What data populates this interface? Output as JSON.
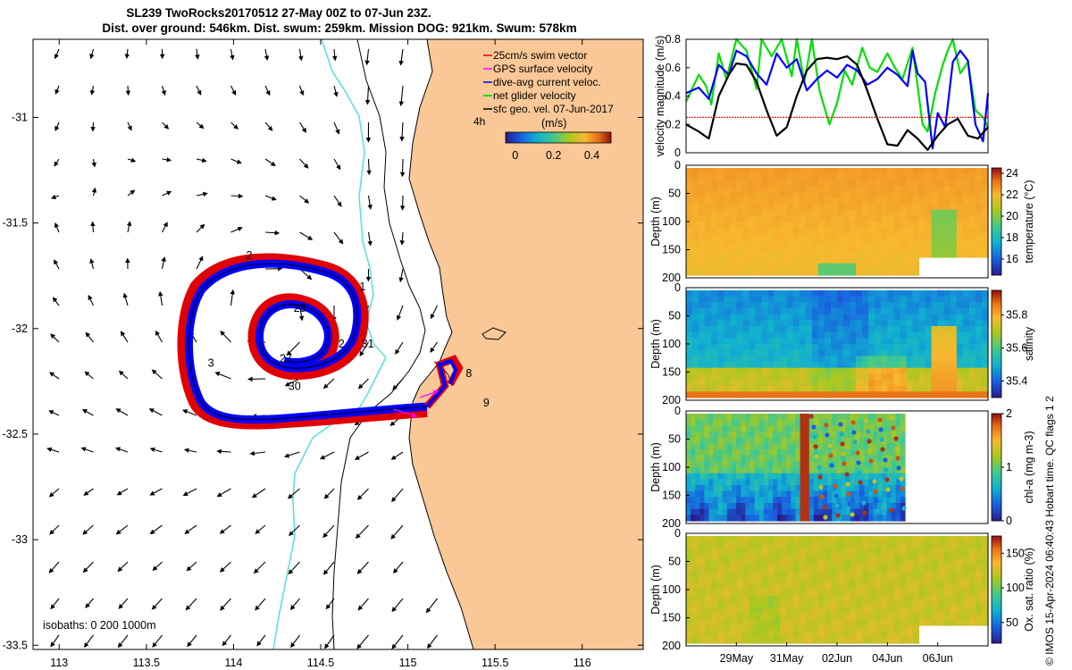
{
  "title_line1": "SL239 TwoRocks20170512 27-May 00Z to 07-Jun 23Z.",
  "title_line2": "Dist. over ground: 546km. Dist. swum: 259km. Mission DOG: 921km. Swum: 578km",
  "credit": "© IMOS 15-Apr-2024 06:40:43 Hobart time. QC flags 1  2",
  "colors": {
    "land": "#f9c896",
    "sea": "#ffffff",
    "isobath200": "#000000",
    "isobath1000": "#55e0e0",
    "swim": "#e00000",
    "dive_avg": "#0000ff",
    "net": "#00e000",
    "sfc_geo": "#000000",
    "gps": "#ff00ff"
  },
  "chart_data": [
    {
      "type": "map",
      "xlim": [
        112.85,
        116.35
      ],
      "ylim": [
        -33.52,
        -30.63
      ],
      "xticks": [
        "113",
        "113.5",
        "114",
        "114.5",
        "115",
        "115.5",
        "116"
      ],
      "xtick_values": [
        113,
        113.5,
        114,
        114.5,
        115,
        115.5,
        116
      ],
      "yticks": [
        "-31",
        "-31.5",
        "-32",
        "-32.5",
        "-33",
        "-33.5"
      ],
      "ytick_values": [
        -31,
        -31.5,
        -32,
        -32.5,
        -33,
        -33.5
      ],
      "legend": [
        "25cm/s swim vector",
        "GPS surface velocity",
        "dive-avg current veloc.",
        "net glider velocity",
        "sfc geo. vel. 07-Jun-2017"
      ],
      "legend_placement": "top-right",
      "colorbar": {
        "label": "(m/s)",
        "ticks": [
          "0",
          "0.2",
          "0.4"
        ],
        "tick_values": [
          0,
          0.2,
          0.4
        ],
        "range": [
          -0.05,
          0.5
        ],
        "note": "4h"
      },
      "isobath_label": "isobaths: 0   200  1000m",
      "track_day_labels": [
        {
          "text": "1",
          "lon": 114.74,
          "lat": -31.82
        },
        {
          "text": "2",
          "lon": 114.09,
          "lat": -31.67
        },
        {
          "text": "23",
          "lon": 114.38,
          "lat": -31.92
        },
        {
          "text": "2",
          "lon": 114.62,
          "lat": -32.09
        },
        {
          "text": "31",
          "lon": 114.77,
          "lat": -32.09
        },
        {
          "text": "3",
          "lon": 113.87,
          "lat": -32.18
        },
        {
          "text": "27",
          "lon": 114.3,
          "lat": -32.16
        },
        {
          "text": "30",
          "lon": 114.35,
          "lat": -32.29
        },
        {
          "text": "8",
          "lon": 115.35,
          "lat": -32.23
        },
        {
          "text": "9",
          "lon": 115.45,
          "lat": -32.37
        }
      ]
    },
    {
      "type": "line",
      "ylabel": "velocity magnitude (m/s)",
      "ylim": [
        0,
        0.8
      ],
      "yticks": [
        "0",
        "0.2",
        "0.4",
        "0.6",
        "0.8"
      ],
      "ytick_values": [
        0,
        0.2,
        0.4,
        0.6,
        0.8
      ],
      "xlim": [
        0,
        12
      ],
      "series": [
        {
          "name": "net glider velocity",
          "color": "#00e000",
          "x": [
            0,
            0.5,
            0.8,
            1.0,
            1.3,
            1.6,
            2.0,
            2.4,
            2.8,
            3.0,
            3.4,
            3.8,
            4.2,
            4.4,
            4.7,
            5.0,
            5.3,
            5.7,
            6.0,
            6.3,
            6.6,
            7.0,
            7.3,
            7.6,
            8.0,
            8.3,
            8.6,
            9.0,
            9.4,
            9.6,
            9.9,
            10.2,
            10.4,
            10.6,
            10.9,
            11.2,
            11.5,
            11.8,
            12.0
          ],
          "y": [
            0.36,
            0.55,
            0.47,
            0.34,
            0.7,
            0.52,
            0.8,
            0.72,
            0.45,
            0.8,
            0.68,
            0.8,
            0.54,
            0.8,
            0.5,
            0.8,
            0.44,
            0.2,
            0.35,
            0.58,
            0.48,
            0.74,
            0.6,
            0.57,
            0.7,
            0.6,
            0.52,
            0.74,
            0.2,
            0.15,
            0.42,
            0.62,
            0.72,
            0.8,
            0.56,
            0.64,
            0.3,
            0.25,
            0.18
          ]
        },
        {
          "name": "dive-avg current veloc.",
          "color": "#0000ff",
          "x": [
            0,
            0.5,
            0.9,
            1.3,
            1.7,
            2.0,
            2.4,
            2.8,
            3.2,
            3.6,
            4.0,
            4.4,
            4.8,
            5.2,
            5.6,
            6.0,
            6.4,
            6.8,
            7.2,
            7.6,
            8.0,
            8.4,
            8.8,
            9.0,
            9.2,
            9.5,
            9.8,
            10.0,
            10.3,
            10.6,
            10.9,
            11.2,
            11.5,
            11.8,
            12.0
          ],
          "y": [
            0.42,
            0.46,
            0.38,
            0.62,
            0.55,
            0.72,
            0.68,
            0.56,
            0.48,
            0.7,
            0.6,
            0.66,
            0.44,
            0.52,
            0.58,
            0.53,
            0.62,
            0.58,
            0.48,
            0.52,
            0.6,
            0.55,
            0.47,
            0.72,
            0.56,
            0.5,
            0.03,
            0.28,
            0.18,
            0.64,
            0.72,
            0.65,
            0.2,
            0.08,
            0.42
          ]
        },
        {
          "name": "sfc geo. vel. 07-Jun-2017",
          "color": "#000000",
          "x": [
            0,
            0.5,
            0.9,
            1.3,
            1.7,
            2.0,
            2.4,
            2.8,
            3.2,
            3.6,
            4.0,
            4.4,
            4.8,
            5.2,
            5.6,
            6.0,
            6.4,
            6.8,
            7.2,
            7.6,
            8.0,
            8.4,
            8.8,
            9.2,
            9.6,
            10.0,
            10.4,
            10.8,
            11.2,
            11.6,
            12.0
          ],
          "y": [
            0.2,
            0.15,
            0.1,
            0.4,
            0.55,
            0.63,
            0.62,
            0.5,
            0.3,
            0.12,
            0.18,
            0.4,
            0.58,
            0.66,
            0.67,
            0.66,
            0.68,
            0.62,
            0.44,
            0.24,
            0.06,
            0.05,
            0.16,
            0.1,
            0.02,
            0.12,
            0.2,
            0.24,
            0.12,
            0.1,
            0.18
          ]
        },
        {
          "name": "25cm/s swim vector",
          "color": "#e00000",
          "x": [
            0,
            12
          ],
          "y": [
            0.25,
            0.25
          ]
        }
      ]
    },
    {
      "type": "heatmap",
      "ylabel": "Depth (m)",
      "colorbar_label": "temperature (°C)",
      "ylim": [
        200,
        0
      ],
      "yticks": [
        "0",
        "50",
        "100",
        "150",
        "200"
      ],
      "ytick_values": [
        0,
        50,
        100,
        150,
        200
      ],
      "clim": [
        14.5,
        24.5
      ],
      "cbar_ticks": [
        "16",
        "18",
        "20",
        "22",
        "24"
      ],
      "cbar_tick_values": [
        16,
        18,
        20,
        22,
        24
      ]
    },
    {
      "type": "heatmap",
      "ylabel": "Depth (m)",
      "colorbar_label": "salinity",
      "ylim": [
        200,
        0
      ],
      "yticks": [
        "0",
        "50",
        "100",
        "150",
        "200"
      ],
      "ytick_values": [
        0,
        50,
        100,
        150,
        200
      ],
      "clim": [
        35.3,
        35.95
      ],
      "cbar_ticks": [
        "35.4",
        "35.6",
        "35.8"
      ],
      "cbar_tick_values": [
        35.4,
        35.6,
        35.8
      ]
    },
    {
      "type": "heatmap",
      "ylabel": "Depth (m)",
      "colorbar_label": "chl-a (mg m-3)",
      "ylim": [
        200,
        0
      ],
      "yticks": [
        "0",
        "50",
        "100",
        "150",
        "200"
      ],
      "ytick_values": [
        0,
        50,
        100,
        150,
        200
      ],
      "clim": [
        0,
        2
      ],
      "cbar_ticks": [
        "0",
        "1",
        "2"
      ],
      "cbar_tick_values": [
        0,
        1,
        2
      ]
    },
    {
      "type": "heatmap",
      "ylabel": "Depth (m)",
      "colorbar_label": "Ox. sat. ratio (%)",
      "ylim": [
        200,
        0
      ],
      "yticks": [
        "0",
        "50",
        "100",
        "150",
        "200"
      ],
      "ytick_values": [
        0,
        50,
        100,
        150,
        200
      ],
      "clim": [
        20,
        175
      ],
      "cbar_ticks": [
        "50",
        "100",
        "150"
      ],
      "cbar_tick_values": [
        50,
        100,
        150
      ],
      "xticks": [
        "29May",
        "31May",
        "02Jun",
        "04Jun",
        "06Jun"
      ],
      "xtick_values": [
        2,
        4,
        6,
        8,
        10
      ]
    }
  ]
}
